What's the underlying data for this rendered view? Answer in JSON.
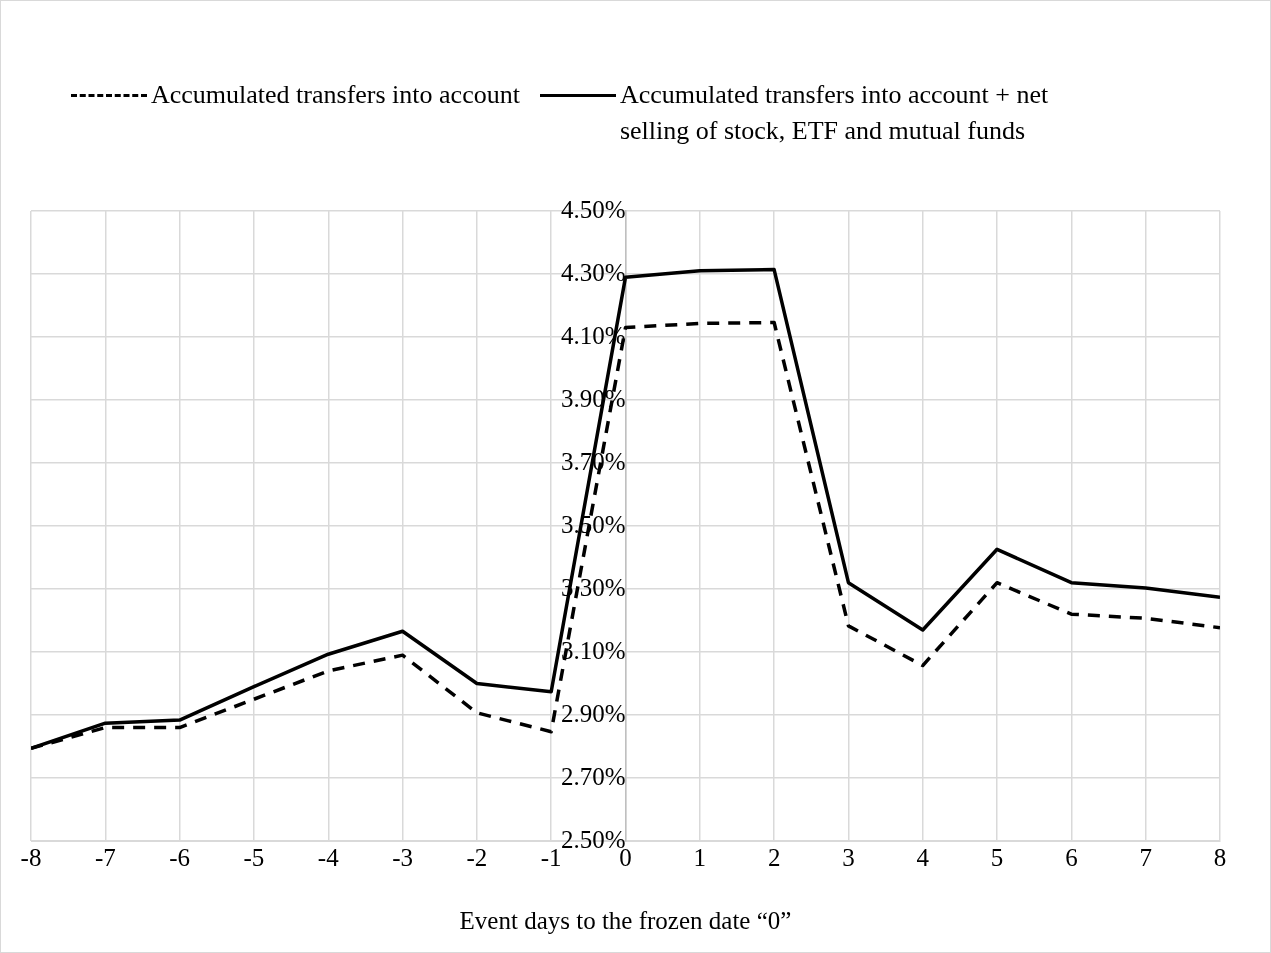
{
  "chart_data": {
    "type": "line",
    "xlabel": "Event days to the frozen date “0”",
    "x": [
      -8,
      -7,
      -6,
      -5,
      -4,
      -3,
      -2,
      -1,
      0,
      1,
      2,
      3,
      4,
      5,
      6,
      7,
      8
    ],
    "xlim": [
      -8,
      8
    ],
    "xticks": [
      -8,
      -7,
      -6,
      -5,
      -4,
      -3,
      -2,
      -1,
      0,
      1,
      2,
      3,
      4,
      5,
      6,
      7,
      8
    ],
    "ylim": [
      2.5,
      4.5
    ],
    "yticks": [
      {
        "value": 2.5,
        "label": "2.50%"
      },
      {
        "value": 2.7,
        "label": "2.70%"
      },
      {
        "value": 2.9,
        "label": "2.90%"
      },
      {
        "value": 3.1,
        "label": "3.10%"
      },
      {
        "value": 3.3,
        "label": "3.30%"
      },
      {
        "value": 3.5,
        "label": "3.50%"
      },
      {
        "value": 3.7,
        "label": "3.70%"
      },
      {
        "value": 3.9,
        "label": "3.90%"
      },
      {
        "value": 4.1,
        "label": "4.10%"
      },
      {
        "value": 4.3,
        "label": "4.30%"
      },
      {
        "value": 4.5,
        "label": "4.50%"
      }
    ],
    "grid": true,
    "legend": "top",
    "marker": "none",
    "series": [
      {
        "name": "Accumulated transfers into account",
        "color": "#000000",
        "line_style": "dashed",
        "values": [
          2.794,
          2.86,
          2.86,
          2.95,
          3.04,
          3.09,
          2.907,
          2.847,
          4.13,
          4.143,
          4.146,
          3.183,
          3.057,
          3.32,
          3.22,
          3.207,
          3.177
        ]
      },
      {
        "name": "Accumulated transfers into account + net selling of stock, ETF and mutual funds",
        "color": "#000000",
        "line_style": "solid",
        "values": [
          2.794,
          2.874,
          2.884,
          2.99,
          3.093,
          3.166,
          3.0,
          2.974,
          4.29,
          4.31,
          4.314,
          3.32,
          3.17,
          3.426,
          3.32,
          3.303,
          3.274
        ]
      }
    ]
  }
}
